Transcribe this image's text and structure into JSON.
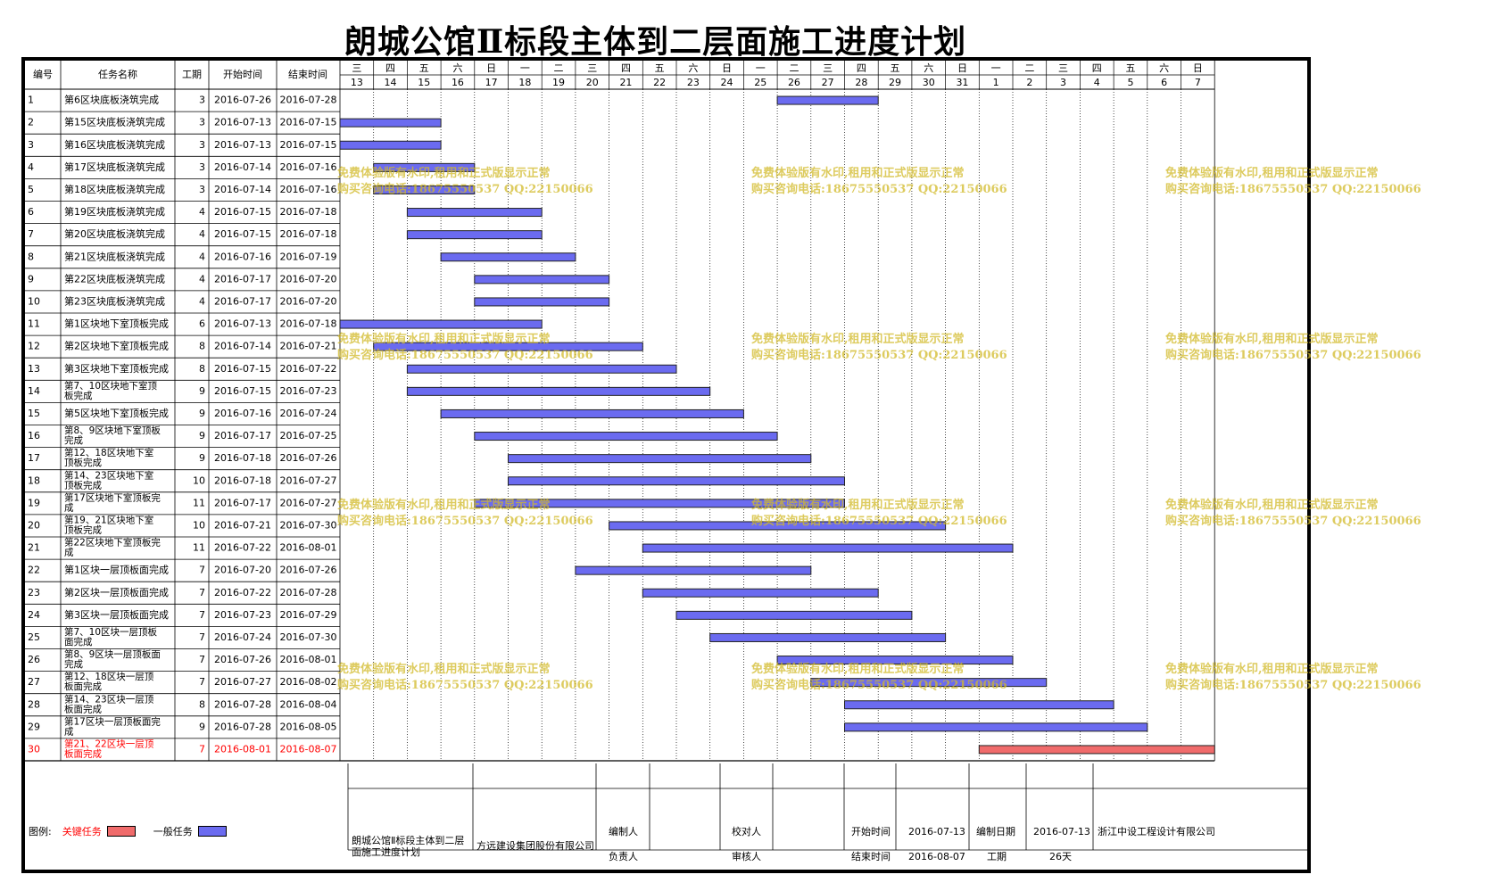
{
  "title": "朗城公馆Ⅱ标段主体到二层面施工进度计划",
  "headers": {
    "id": "编号",
    "name": "任务名称",
    "duration": "工期",
    "start": "开始时间",
    "end": "结束时间"
  },
  "calendar": {
    "weekdays": [
      "三",
      "四",
      "五",
      "六",
      "日",
      "一",
      "二",
      "三",
      "四",
      "五",
      "六",
      "日",
      "一",
      "二",
      "三",
      "四",
      "五",
      "六",
      "日",
      "一",
      "二",
      "三",
      "四",
      "五",
      "六",
      "日"
    ],
    "days": [
      "13",
      "14",
      "15",
      "16",
      "17",
      "18",
      "19",
      "20",
      "21",
      "22",
      "23",
      "24",
      "25",
      "26",
      "27",
      "28",
      "29",
      "30",
      "31",
      "1",
      "2",
      "3",
      "4",
      "5",
      "6",
      "7"
    ]
  },
  "chart_data": {
    "type": "gantt",
    "title": "朗城公馆Ⅱ标段主体到二层面施工进度计划",
    "x_range": [
      "2016-07-13",
      "2016-08-07"
    ],
    "tasks": [
      {
        "id": "1",
        "name": "第6区块底板浇筑完成",
        "duration": "3",
        "start": "2016-07-26",
        "end": "2016-07-28",
        "critical": false
      },
      {
        "id": "2",
        "name": "第15区块底板浇筑完成",
        "duration": "3",
        "start": "2016-07-13",
        "end": "2016-07-15",
        "critical": false
      },
      {
        "id": "3",
        "name": "第16区块底板浇筑完成",
        "duration": "3",
        "start": "2016-07-13",
        "end": "2016-07-15",
        "critical": false
      },
      {
        "id": "4",
        "name": "第17区块底板浇筑完成",
        "duration": "3",
        "start": "2016-07-14",
        "end": "2016-07-16",
        "critical": false
      },
      {
        "id": "5",
        "name": "第18区块底板浇筑完成",
        "duration": "3",
        "start": "2016-07-14",
        "end": "2016-07-16",
        "critical": false
      },
      {
        "id": "6",
        "name": "第19区块底板浇筑完成",
        "duration": "4",
        "start": "2016-07-15",
        "end": "2016-07-18",
        "critical": false
      },
      {
        "id": "7",
        "name": "第20区块底板浇筑完成",
        "duration": "4",
        "start": "2016-07-15",
        "end": "2016-07-18",
        "critical": false
      },
      {
        "id": "8",
        "name": "第21区块底板浇筑完成",
        "duration": "4",
        "start": "2016-07-16",
        "end": "2016-07-19",
        "critical": false
      },
      {
        "id": "9",
        "name": "第22区块底板浇筑完成",
        "duration": "4",
        "start": "2016-07-17",
        "end": "2016-07-20",
        "critical": false
      },
      {
        "id": "10",
        "name": "第23区块底板浇筑完成",
        "duration": "4",
        "start": "2016-07-17",
        "end": "2016-07-20",
        "critical": false
      },
      {
        "id": "11",
        "name": "第1区块地下室顶板完成",
        "duration": "6",
        "start": "2016-07-13",
        "end": "2016-07-18",
        "critical": false
      },
      {
        "id": "12",
        "name": "第2区块地下室顶板完成",
        "duration": "8",
        "start": "2016-07-14",
        "end": "2016-07-21",
        "critical": false
      },
      {
        "id": "13",
        "name": "第3区块地下室顶板完成",
        "duration": "8",
        "start": "2016-07-15",
        "end": "2016-07-22",
        "critical": false
      },
      {
        "id": "14",
        "name": "第7、10区块地下室顶板完成",
        "duration": "9",
        "start": "2016-07-15",
        "end": "2016-07-23",
        "critical": false
      },
      {
        "id": "15",
        "name": "第5区块地下室顶板完成",
        "duration": "9",
        "start": "2016-07-16",
        "end": "2016-07-24",
        "critical": false
      },
      {
        "id": "16",
        "name": "第8、9区块地下室顶板完成",
        "duration": "9",
        "start": "2016-07-17",
        "end": "2016-07-25",
        "critical": false
      },
      {
        "id": "17",
        "name": "第12、18区块地下室顶板完成",
        "duration": "9",
        "start": "2016-07-18",
        "end": "2016-07-26",
        "critical": false
      },
      {
        "id": "18",
        "name": "第14、23区块地下室顶板完成",
        "duration": "10",
        "start": "2016-07-18",
        "end": "2016-07-27",
        "critical": false
      },
      {
        "id": "19",
        "name": "第17区块地下室顶板完成",
        "duration": "11",
        "start": "2016-07-17",
        "end": "2016-07-27",
        "critical": false
      },
      {
        "id": "20",
        "name": "第19、21区块地下室顶板完成",
        "duration": "10",
        "start": "2016-07-21",
        "end": "2016-07-30",
        "critical": false
      },
      {
        "id": "21",
        "name": "第22区块地下室顶板完成",
        "duration": "11",
        "start": "2016-07-22",
        "end": "2016-08-01",
        "critical": false
      },
      {
        "id": "22",
        "name": "第1区块一层顶板面完成",
        "duration": "7",
        "start": "2016-07-20",
        "end": "2016-07-26",
        "critical": false
      },
      {
        "id": "23",
        "name": "第2区块一层顶板面完成",
        "duration": "7",
        "start": "2016-07-22",
        "end": "2016-07-28",
        "critical": false
      },
      {
        "id": "24",
        "name": "第3区块一层顶板面完成",
        "duration": "7",
        "start": "2016-07-23",
        "end": "2016-07-29",
        "critical": false
      },
      {
        "id": "25",
        "name": "第7、10区块一层顶板面完成",
        "duration": "7",
        "start": "2016-07-24",
        "end": "2016-07-30",
        "critical": false
      },
      {
        "id": "26",
        "name": "第8、9区块一层顶板面完成",
        "duration": "7",
        "start": "2016-07-26",
        "end": "2016-08-01",
        "critical": false
      },
      {
        "id": "27",
        "name": "第12、18区块一层顶板面完成",
        "duration": "7",
        "start": "2016-07-27",
        "end": "2016-08-02",
        "critical": false
      },
      {
        "id": "28",
        "name": "第14、23区块一层顶板面完成",
        "duration": "8",
        "start": "2016-07-28",
        "end": "2016-08-04",
        "critical": false
      },
      {
        "id": "29",
        "name": "第17区块一层顶板面完成",
        "duration": "9",
        "start": "2016-07-28",
        "end": "2016-08-05",
        "critical": false
      },
      {
        "id": "30",
        "name": "第21、22区块一层顶板面完成",
        "duration": "7",
        "start": "2016-08-01",
        "end": "2016-08-07",
        "critical": true
      }
    ]
  },
  "colors": {
    "normal_bar": "#6b6bf0",
    "critical_bar": "#f06b6b",
    "critical_text": "#ff0000",
    "watermark": "#d2b928"
  },
  "legend": {
    "label": "图例:",
    "critical": "关键任务",
    "normal": "一般任务"
  },
  "footer": {
    "project": "朗城公馆Ⅱ标段主体到二层面施工进度计划",
    "company": "方远建设集团股份有限公司",
    "editor_label": "编制人",
    "checker_label": "校对人",
    "owner_label": "负责人",
    "reviewer_label": "审核人",
    "start_label": "开始时间",
    "start_value": "2016-07-13",
    "end_label": "结束时间",
    "end_value": "2016-08-07",
    "date_label": "编制日期",
    "date_value": "2016-07-13",
    "duration_label": "工期",
    "duration_value": "26天",
    "designer": "浙江中设工程设计有限公司"
  },
  "watermark": {
    "line1": "免费体验版有水印,租用和正式版显示正常",
    "line2": "购买咨询电话:18675550537 QQ:22150066"
  }
}
